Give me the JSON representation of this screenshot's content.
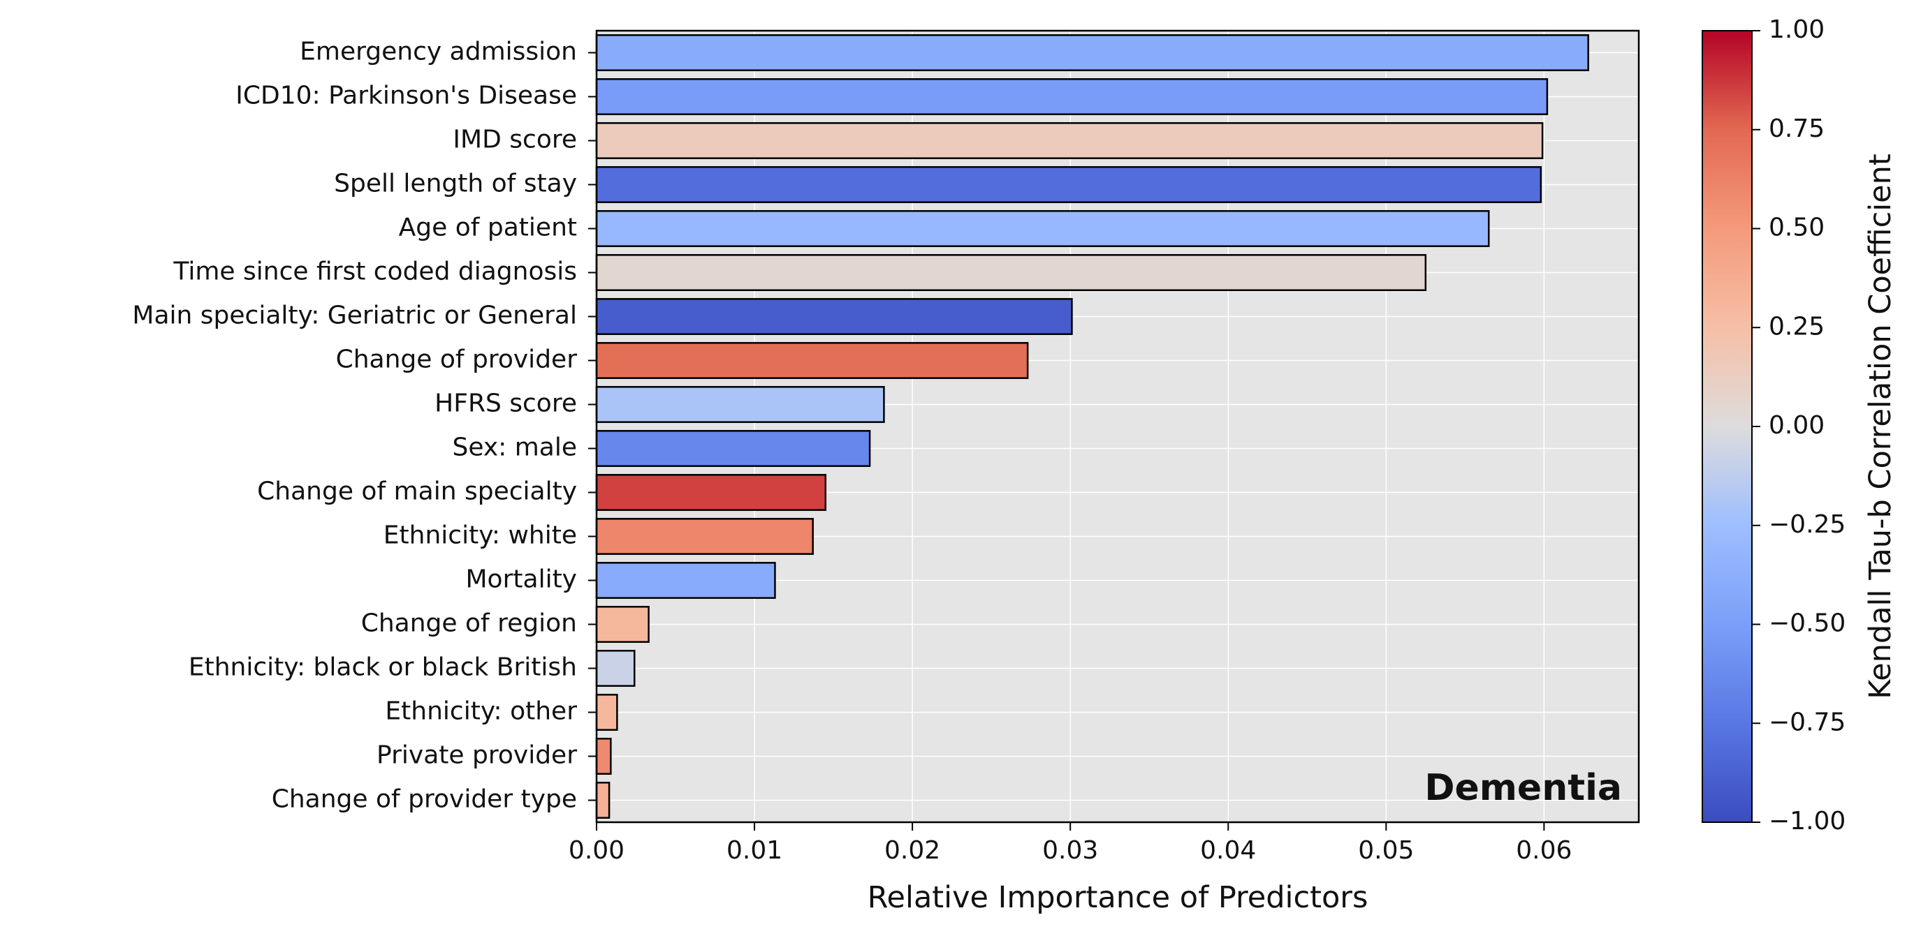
{
  "chart_data": {
    "type": "bar",
    "orientation": "horizontal",
    "annotation": "Dementia",
    "xlabel": "Relative Importance of Predictors",
    "xlim": [
      0,
      0.066
    ],
    "xticks": [
      0.0,
      0.01,
      0.02,
      0.03,
      0.04,
      0.05,
      0.06
    ],
    "xtick_labels": [
      "0.00",
      "0.01",
      "0.02",
      "0.03",
      "0.04",
      "0.05",
      "0.06"
    ],
    "grid": true,
    "categories": [
      "Emergency admission",
      "ICD10: Parkinson's Disease",
      "IMD score",
      "Spell length of stay",
      "Age of patient",
      "Time since first coded diagnosis",
      "Main specialty: Geriatric or General",
      "Change of provider",
      "HFRS score",
      "Sex: male",
      "Change of main specialty",
      "Ethnicity: white",
      "Mortality",
      "Change of region",
      "Ethnicity: black or black British",
      "Ethnicity: other",
      "Private provider",
      "Change of provider type"
    ],
    "values": [
      0.0628,
      0.0602,
      0.0599,
      0.0598,
      0.0565,
      0.0525,
      0.0301,
      0.0273,
      0.0182,
      0.0173,
      0.0145,
      0.0137,
      0.0113,
      0.0033,
      0.0024,
      0.0013,
      0.0009,
      0.0008
    ],
    "correlations": [
      -0.4,
      -0.52,
      0.15,
      -0.8,
      -0.3,
      0.05,
      -0.9,
      0.72,
      -0.2,
      -0.65,
      0.85,
      0.6,
      -0.4,
      0.3,
      -0.08,
      0.3,
      0.58,
      0.35
    ],
    "colorbar": {
      "label": "Kendall Tau-b Correlation Coefficient",
      "range": [
        -1.0,
        1.0
      ],
      "colormap": "coolwarm",
      "ticks": [
        1.0,
        0.75,
        0.5,
        0.25,
        0.0,
        -0.25,
        -0.5,
        -0.75,
        -1.0
      ],
      "tick_labels": [
        "1.00",
        "0.75",
        "0.50",
        "0.25",
        "0.00",
        "−0.25",
        "−0.50",
        "−0.75",
        "−1.00"
      ]
    },
    "colors": {
      "plot_background": "#e5e5e5",
      "grid": "#ffffff",
      "bar_edge": "#000000"
    }
  }
}
